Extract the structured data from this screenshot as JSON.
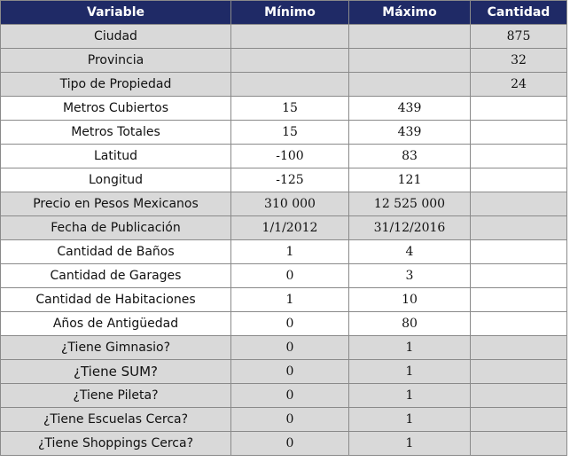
{
  "table": {
    "headers": [
      "Variable",
      "Mínimo",
      "Máximo",
      "Cantidad"
    ],
    "rows": [
      {
        "variable": "Ciudad",
        "min": "",
        "max": "",
        "cantidad": "875",
        "shade": true
      },
      {
        "variable": "Provincia",
        "min": "",
        "max": "",
        "cantidad": "32",
        "shade": true
      },
      {
        "variable": "Tipo de Propiedad",
        "min": "",
        "max": "",
        "cantidad": "24",
        "shade": true
      },
      {
        "variable": "Metros Cubiertos",
        "min": "15",
        "max": "439",
        "cantidad": "",
        "shade": false
      },
      {
        "variable": "Metros Totales",
        "min": "15",
        "max": "439",
        "cantidad": "",
        "shade": false
      },
      {
        "variable": "Latitud",
        "min": "-100",
        "max": "83",
        "cantidad": "",
        "shade": false
      },
      {
        "variable": "Longitud",
        "min": "-125",
        "max": "121",
        "cantidad": "",
        "shade": false
      },
      {
        "variable": "Precio en Pesos Mexicanos",
        "min": "310 000",
        "max": "12 525 000",
        "cantidad": "",
        "shade": true
      },
      {
        "variable": "Fecha de Publicación",
        "min": "1/1/2012",
        "max": "31/12/2016",
        "cantidad": "",
        "shade": true
      },
      {
        "variable": "Cantidad de Baños",
        "min": "1",
        "max": "4",
        "cantidad": "",
        "shade": false
      },
      {
        "variable": "Cantidad de Garages",
        "min": "0",
        "max": "3",
        "cantidad": "",
        "shade": false
      },
      {
        "variable": "Cantidad de Habitaciones",
        "min": "1",
        "max": "10",
        "cantidad": "",
        "shade": false
      },
      {
        "variable": "Años de Antigüedad",
        "min": "0",
        "max": "80",
        "cantidad": "",
        "shade": false
      },
      {
        "variable": "¿Tiene Gimnasio?",
        "min": "0",
        "max": "1",
        "cantidad": "",
        "shade": true
      },
      {
        "variable": "¿Tiene SUM?",
        "min": "0",
        "max": "1",
        "cantidad": "",
        "shade": true
      },
      {
        "variable": "¿Tiene Pileta?",
        "min": "0",
        "max": "1",
        "cantidad": "",
        "shade": true
      },
      {
        "variable": "¿Tiene Escuelas Cerca?",
        "min": "0",
        "max": "1",
        "cantidad": "",
        "shade": true
      },
      {
        "variable": "¿Tiene Shoppings Cerca?",
        "min": "0",
        "max": "1",
        "cantidad": "",
        "shade": true
      }
    ]
  },
  "colors": {
    "header_bg": "#1f2a66",
    "header_text": "#ffffff",
    "shade_bg": "#d9d9d9",
    "plain_bg": "#ffffff",
    "border": "#8a8a8a"
  }
}
